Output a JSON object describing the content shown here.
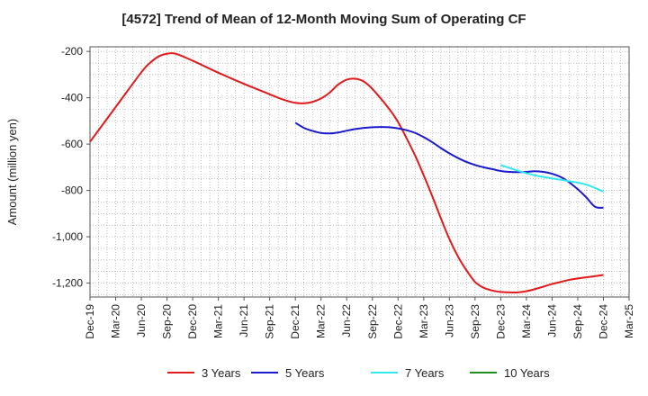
{
  "chart_data": {
    "type": "line",
    "title": "[4572]  Trend of Mean of 12-Month Moving Sum of Operating CF",
    "xlabel": "",
    "ylabel": "Amount (million yen)",
    "ylim": [
      -1260,
      -180
    ],
    "y_ticks": [
      -200,
      -400,
      -600,
      -800,
      -1000,
      -1200
    ],
    "y_tick_labels": [
      "-200",
      "-400",
      "-600",
      "-800",
      "-1,000",
      "-1,200"
    ],
    "x_tick_labels": [
      "Dec-19",
      "Mar-20",
      "Jun-20",
      "Sep-20",
      "Dec-20",
      "Mar-21",
      "Jun-21",
      "Sep-21",
      "Dec-21",
      "Mar-22",
      "Jun-22",
      "Sep-22",
      "Dec-22",
      "Mar-23",
      "Jun-23",
      "Sep-23",
      "Dec-23",
      "Mar-24",
      "Jun-24",
      "Sep-24",
      "Dec-24",
      "Mar-25"
    ],
    "grid": true,
    "legend_position": "bottom",
    "x_unit": "month index from Dec-19",
    "series": [
      {
        "name": "3 Years",
        "color": "#e31a1c",
        "x": [
          0,
          3,
          6,
          7,
          8,
          9,
          10,
          12,
          15,
          18,
          21,
          22,
          23,
          24,
          25,
          26,
          27,
          28,
          29,
          30,
          31,
          32,
          33,
          35,
          36,
          37,
          38,
          39,
          40,
          41,
          42,
          43,
          44,
          45,
          46,
          47,
          48,
          49,
          50,
          51,
          52,
          53,
          54,
          55,
          56,
          57,
          58,
          59,
          60
        ],
        "y": [
          -590,
          -440,
          -290,
          -250,
          -222,
          -210,
          -210,
          -240,
          -292,
          -340,
          -385,
          -400,
          -413,
          -422,
          -424,
          -418,
          -403,
          -378,
          -343,
          -322,
          -318,
          -330,
          -362,
          -450,
          -505,
          -575,
          -650,
          -735,
          -825,
          -920,
          -1010,
          -1085,
          -1145,
          -1195,
          -1220,
          -1232,
          -1238,
          -1240,
          -1240,
          -1235,
          -1226,
          -1215,
          -1204,
          -1195,
          -1186,
          -1180,
          -1175,
          -1170,
          -1165
        ]
      },
      {
        "name": "5 Years",
        "color": "#1a1acc",
        "x": [
          24,
          25,
          26,
          27,
          28,
          29,
          30,
          31,
          32,
          33,
          34,
          35,
          36,
          37,
          38,
          39,
          40,
          41,
          42,
          43,
          44,
          45,
          46,
          47,
          48,
          49,
          50,
          51,
          52,
          53,
          54,
          55,
          56,
          57,
          58,
          59,
          60
        ],
        "y": [
          -508,
          -530,
          -543,
          -552,
          -554,
          -550,
          -542,
          -535,
          -530,
          -527,
          -526,
          -527,
          -532,
          -540,
          -552,
          -570,
          -592,
          -617,
          -640,
          -660,
          -677,
          -690,
          -700,
          -708,
          -716,
          -720,
          -721,
          -720,
          -717,
          -720,
          -728,
          -742,
          -765,
          -795,
          -830,
          -870,
          -875
        ]
      },
      {
        "name": "7 Years",
        "color": "#33e8f0",
        "x": [
          48,
          50,
          52,
          54,
          56,
          58,
          60
        ],
        "y": [
          -690,
          -715,
          -735,
          -748,
          -760,
          -775,
          -805
        ]
      },
      {
        "name": "10 Years",
        "color": "#1f8f1f",
        "x": [],
        "y": []
      }
    ]
  }
}
